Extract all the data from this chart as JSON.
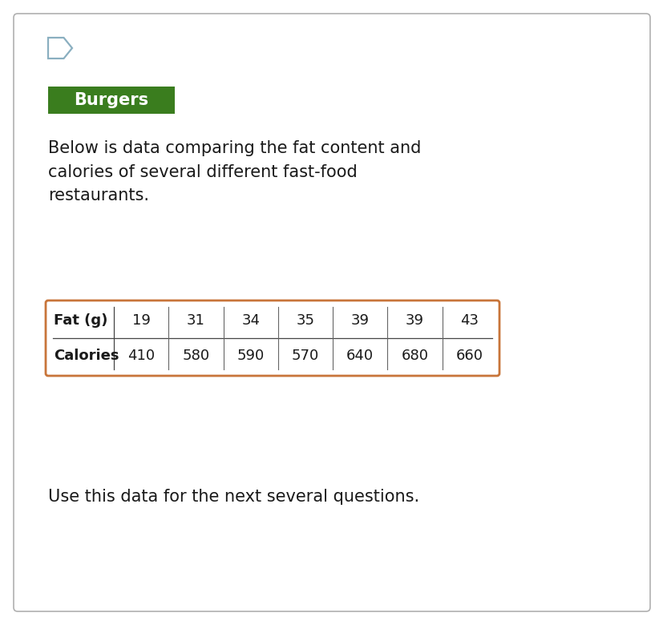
{
  "title": "Burgers",
  "title_bg_color": "#3a7d1e",
  "title_text_color": "#ffffff",
  "description": "Below is data comparing the fat content and\ncalories of several different fast-food\nrestaurants.",
  "footer": "Use this data for the next several questions.",
  "fat_label": "Fat (g)",
  "cal_label": "Calories",
  "fat_values": [
    19,
    31,
    34,
    35,
    39,
    39,
    43
  ],
  "cal_values": [
    410,
    580,
    590,
    570,
    640,
    680,
    660
  ],
  "table_border_color": "#c8753a",
  "outer_border_color": "#b0b0b0",
  "background_color": "#ffffff",
  "text_color": "#1a1a1a",
  "icon_color": "#8aafc0",
  "fig_width": 8.28,
  "fig_height": 7.8,
  "dpi": 100
}
